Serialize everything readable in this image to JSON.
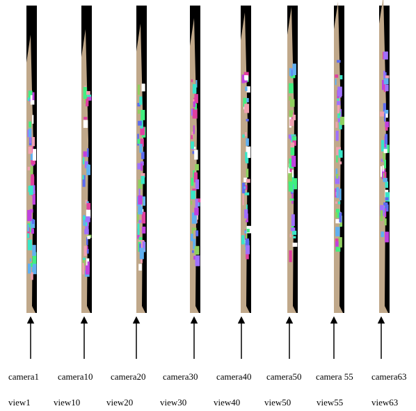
{
  "columns": [
    {
      "camera": "camera1",
      "view": "view1"
    },
    {
      "camera": "camera10",
      "view": "view10"
    },
    {
      "camera": "camera20",
      "view": "view20"
    },
    {
      "camera": "camera30",
      "view": "view30"
    },
    {
      "camera": "camera40",
      "view": "view40"
    },
    {
      "camera": "camera50",
      "view": "view50"
    },
    {
      "camera": "camera 55",
      "view": "view55"
    },
    {
      "camera": "camera63",
      "view": "view63"
    }
  ]
}
